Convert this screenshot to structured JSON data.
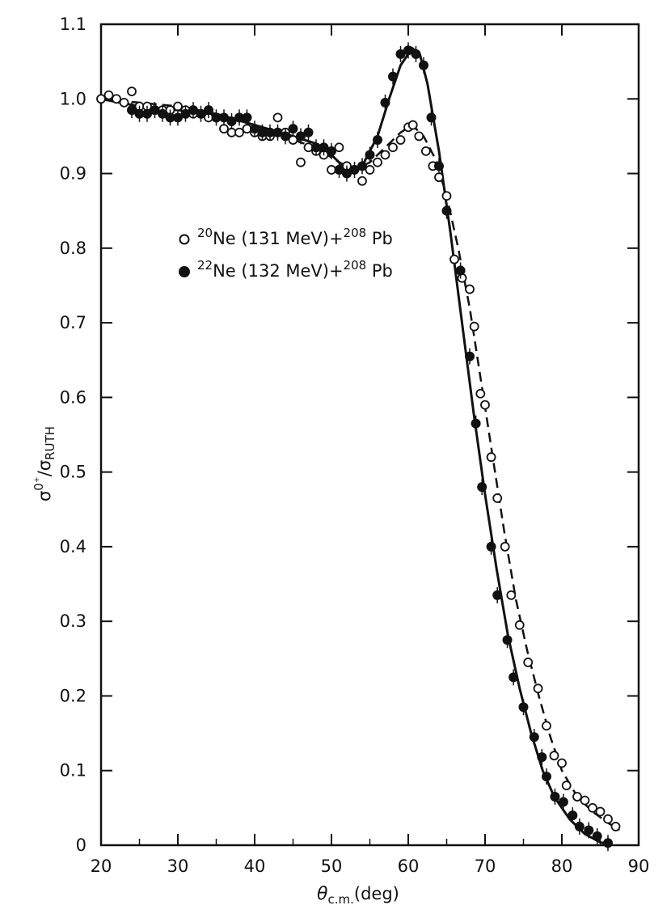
{
  "chart_data": {
    "type": "scatter",
    "xlabel": {
      "symbol": "θ",
      "sub": "c.m.",
      "rest": "(deg)"
    },
    "ylabel": {
      "sigma1": "σ",
      "sup": "0⁺",
      "slash": "/",
      "sigma2": "σ",
      "sub": "RUTH"
    },
    "xlim": [
      20,
      90
    ],
    "ylim": [
      0,
      1.1
    ],
    "xticks": [
      "20",
      "30",
      "40",
      "50",
      "60",
      "70",
      "80",
      "90"
    ],
    "yticks": [
      "0",
      "0.1",
      "0.2",
      "0.3",
      "0.4",
      "0.5",
      "0.6",
      "0.7",
      "0.8",
      "0.9",
      "1.0",
      "1.1"
    ],
    "legend": [
      {
        "marker": "open-circle",
        "iso": "20",
        "main": "Ne (131 MeV)+",
        "iso2": "208",
        "end": " Pb"
      },
      {
        "marker": "filled-circle",
        "iso": "22",
        "main": "Ne (132 MeV)+",
        "iso2": "208",
        "end": " Pb"
      }
    ],
    "legend_placement": "upper-left",
    "series": [
      {
        "marker": "open",
        "line_style": "dashed",
        "points": [
          [
            20,
            1.0
          ],
          [
            21,
            1.005
          ],
          [
            22,
            1.0
          ],
          [
            23,
            0.995
          ],
          [
            24,
            1.01
          ],
          [
            25,
            0.99
          ],
          [
            26,
            0.99
          ],
          [
            27,
            0.985
          ],
          [
            28,
            0.985
          ],
          [
            29,
            0.985
          ],
          [
            30,
            0.99
          ],
          [
            31,
            0.985
          ],
          [
            32,
            0.98
          ],
          [
            33,
            0.98
          ],
          [
            34,
            0.975
          ],
          [
            35,
            0.975
          ],
          [
            36,
            0.96
          ],
          [
            37,
            0.955
          ],
          [
            38,
            0.955
          ],
          [
            39,
            0.96
          ],
          [
            40,
            0.955
          ],
          [
            41,
            0.95
          ],
          [
            42,
            0.95
          ],
          [
            43,
            0.975
          ],
          [
            44,
            0.955
          ],
          [
            45,
            0.945
          ],
          [
            46,
            0.915
          ],
          [
            47,
            0.935
          ],
          [
            48,
            0.93
          ],
          [
            49,
            0.925
          ],
          [
            50,
            0.905
          ],
          [
            51,
            0.935
          ],
          [
            52,
            0.91
          ],
          [
            53,
            0.905
          ],
          [
            54,
            0.89
          ],
          [
            55,
            0.905
          ],
          [
            56,
            0.915
          ],
          [
            57,
            0.925
          ],
          [
            58,
            0.935
          ],
          [
            59,
            0.945
          ],
          [
            60,
            0.962
          ],
          [
            60.6,
            0.965
          ],
          [
            61.4,
            0.95
          ],
          [
            62.3,
            0.93
          ],
          [
            63.2,
            0.91
          ],
          [
            64,
            0.895
          ],
          [
            65,
            0.87
          ],
          [
            66,
            0.785
          ],
          [
            67,
            0.76
          ],
          [
            68,
            0.745
          ],
          [
            68.6,
            0.695
          ],
          [
            69.4,
            0.605
          ],
          [
            70.0,
            0.59
          ],
          [
            70.8,
            0.52
          ],
          [
            71.6,
            0.465
          ],
          [
            72.6,
            0.4
          ],
          [
            73.4,
            0.335
          ],
          [
            74.5,
            0.295
          ],
          [
            75.6,
            0.245
          ],
          [
            76.9,
            0.21
          ],
          [
            78.0,
            0.16
          ],
          [
            79.0,
            0.12
          ],
          [
            80.0,
            0.11
          ],
          [
            80.6,
            0.08
          ],
          [
            82.0,
            0.065
          ],
          [
            83.0,
            0.06
          ],
          [
            84.0,
            0.05
          ],
          [
            85.0,
            0.045
          ],
          [
            86.0,
            0.035
          ],
          [
            87.0,
            0.025
          ]
        ],
        "curve": [
          [
            20,
            1.0
          ],
          [
            25,
            0.995
          ],
          [
            30,
            0.99
          ],
          [
            35,
            0.98
          ],
          [
            40,
            0.965
          ],
          [
            45,
            0.945
          ],
          [
            48,
            0.935
          ],
          [
            51,
            0.915
          ],
          [
            53,
            0.905
          ],
          [
            55,
            0.915
          ],
          [
            57,
            0.935
          ],
          [
            59,
            0.955
          ],
          [
            60.5,
            0.965
          ],
          [
            62,
            0.95
          ],
          [
            63.5,
            0.92
          ],
          [
            65,
            0.87
          ],
          [
            66.5,
            0.8
          ],
          [
            68,
            0.72
          ],
          [
            69.5,
            0.62
          ],
          [
            71,
            0.52
          ],
          [
            72.5,
            0.42
          ],
          [
            74,
            0.33
          ],
          [
            75.5,
            0.26
          ],
          [
            77,
            0.2
          ],
          [
            78.5,
            0.145
          ],
          [
            80,
            0.1
          ],
          [
            82,
            0.065
          ],
          [
            84,
            0.045
          ],
          [
            86,
            0.03
          ],
          [
            87.5,
            0.02
          ]
        ]
      },
      {
        "marker": "filled",
        "line_style": "solid",
        "points": [
          [
            24,
            0.985
          ],
          [
            25,
            0.98
          ],
          [
            26,
            0.98
          ],
          [
            27,
            0.985
          ],
          [
            28,
            0.98
          ],
          [
            29,
            0.975
          ],
          [
            30,
            0.975
          ],
          [
            31,
            0.98
          ],
          [
            32,
            0.985
          ],
          [
            33,
            0.98
          ],
          [
            34,
            0.985
          ],
          [
            35,
            0.975
          ],
          [
            36,
            0.975
          ],
          [
            37,
            0.97
          ],
          [
            38,
            0.975
          ],
          [
            39,
            0.975
          ],
          [
            40,
            0.96
          ],
          [
            41,
            0.955
          ],
          [
            42,
            0.955
          ],
          [
            43,
            0.955
          ],
          [
            44,
            0.95
          ],
          [
            45,
            0.96
          ],
          [
            46,
            0.95
          ],
          [
            47,
            0.955
          ],
          [
            48,
            0.935
          ],
          [
            49,
            0.935
          ],
          [
            50,
            0.93
          ],
          [
            51,
            0.905
          ],
          [
            52,
            0.9
          ],
          [
            53,
            0.905
          ],
          [
            54,
            0.91
          ],
          [
            55,
            0.925
          ],
          [
            56,
            0.945
          ],
          [
            57,
            0.995
          ],
          [
            58,
            1.03
          ],
          [
            59,
            1.06
          ],
          [
            60,
            1.065
          ],
          [
            61,
            1.06
          ],
          [
            62,
            1.045
          ],
          [
            63,
            0.975
          ],
          [
            64,
            0.91
          ],
          [
            65,
            0.85
          ],
          [
            66.8,
            0.77
          ],
          [
            68.0,
            0.655
          ],
          [
            68.8,
            0.565
          ],
          [
            69.6,
            0.48
          ],
          [
            70.8,
            0.4
          ],
          [
            71.6,
            0.335
          ],
          [
            72.9,
            0.275
          ],
          [
            73.7,
            0.225
          ],
          [
            75.0,
            0.185
          ],
          [
            76.4,
            0.145
          ],
          [
            77.4,
            0.118
          ],
          [
            78.0,
            0.092
          ],
          [
            79.1,
            0.065
          ],
          [
            80.2,
            0.058
          ],
          [
            81.4,
            0.04
          ],
          [
            82.3,
            0.025
          ],
          [
            83.5,
            0.02
          ],
          [
            84.6,
            0.012
          ],
          [
            86.0,
            0.003
          ]
        ],
        "curve": [
          [
            20,
            1.0
          ],
          [
            25,
            0.99
          ],
          [
            30,
            0.985
          ],
          [
            35,
            0.98
          ],
          [
            40,
            0.965
          ],
          [
            45,
            0.95
          ],
          [
            48,
            0.94
          ],
          [
            50,
            0.925
          ],
          [
            52,
            0.905
          ],
          [
            54,
            0.91
          ],
          [
            56,
            0.95
          ],
          [
            57.5,
            1.0
          ],
          [
            59,
            1.045
          ],
          [
            60.5,
            1.068
          ],
          [
            61.5,
            1.06
          ],
          [
            62.5,
            1.02
          ],
          [
            64,
            0.93
          ],
          [
            65.5,
            0.82
          ],
          [
            67,
            0.7
          ],
          [
            68.5,
            0.58
          ],
          [
            70,
            0.47
          ],
          [
            71.5,
            0.37
          ],
          [
            73,
            0.28
          ],
          [
            74.5,
            0.21
          ],
          [
            76,
            0.15
          ],
          [
            77.5,
            0.1
          ],
          [
            79,
            0.065
          ],
          [
            81,
            0.035
          ],
          [
            83,
            0.015
          ],
          [
            85,
            0.004
          ],
          [
            86.5,
            0.0
          ]
        ]
      }
    ]
  }
}
